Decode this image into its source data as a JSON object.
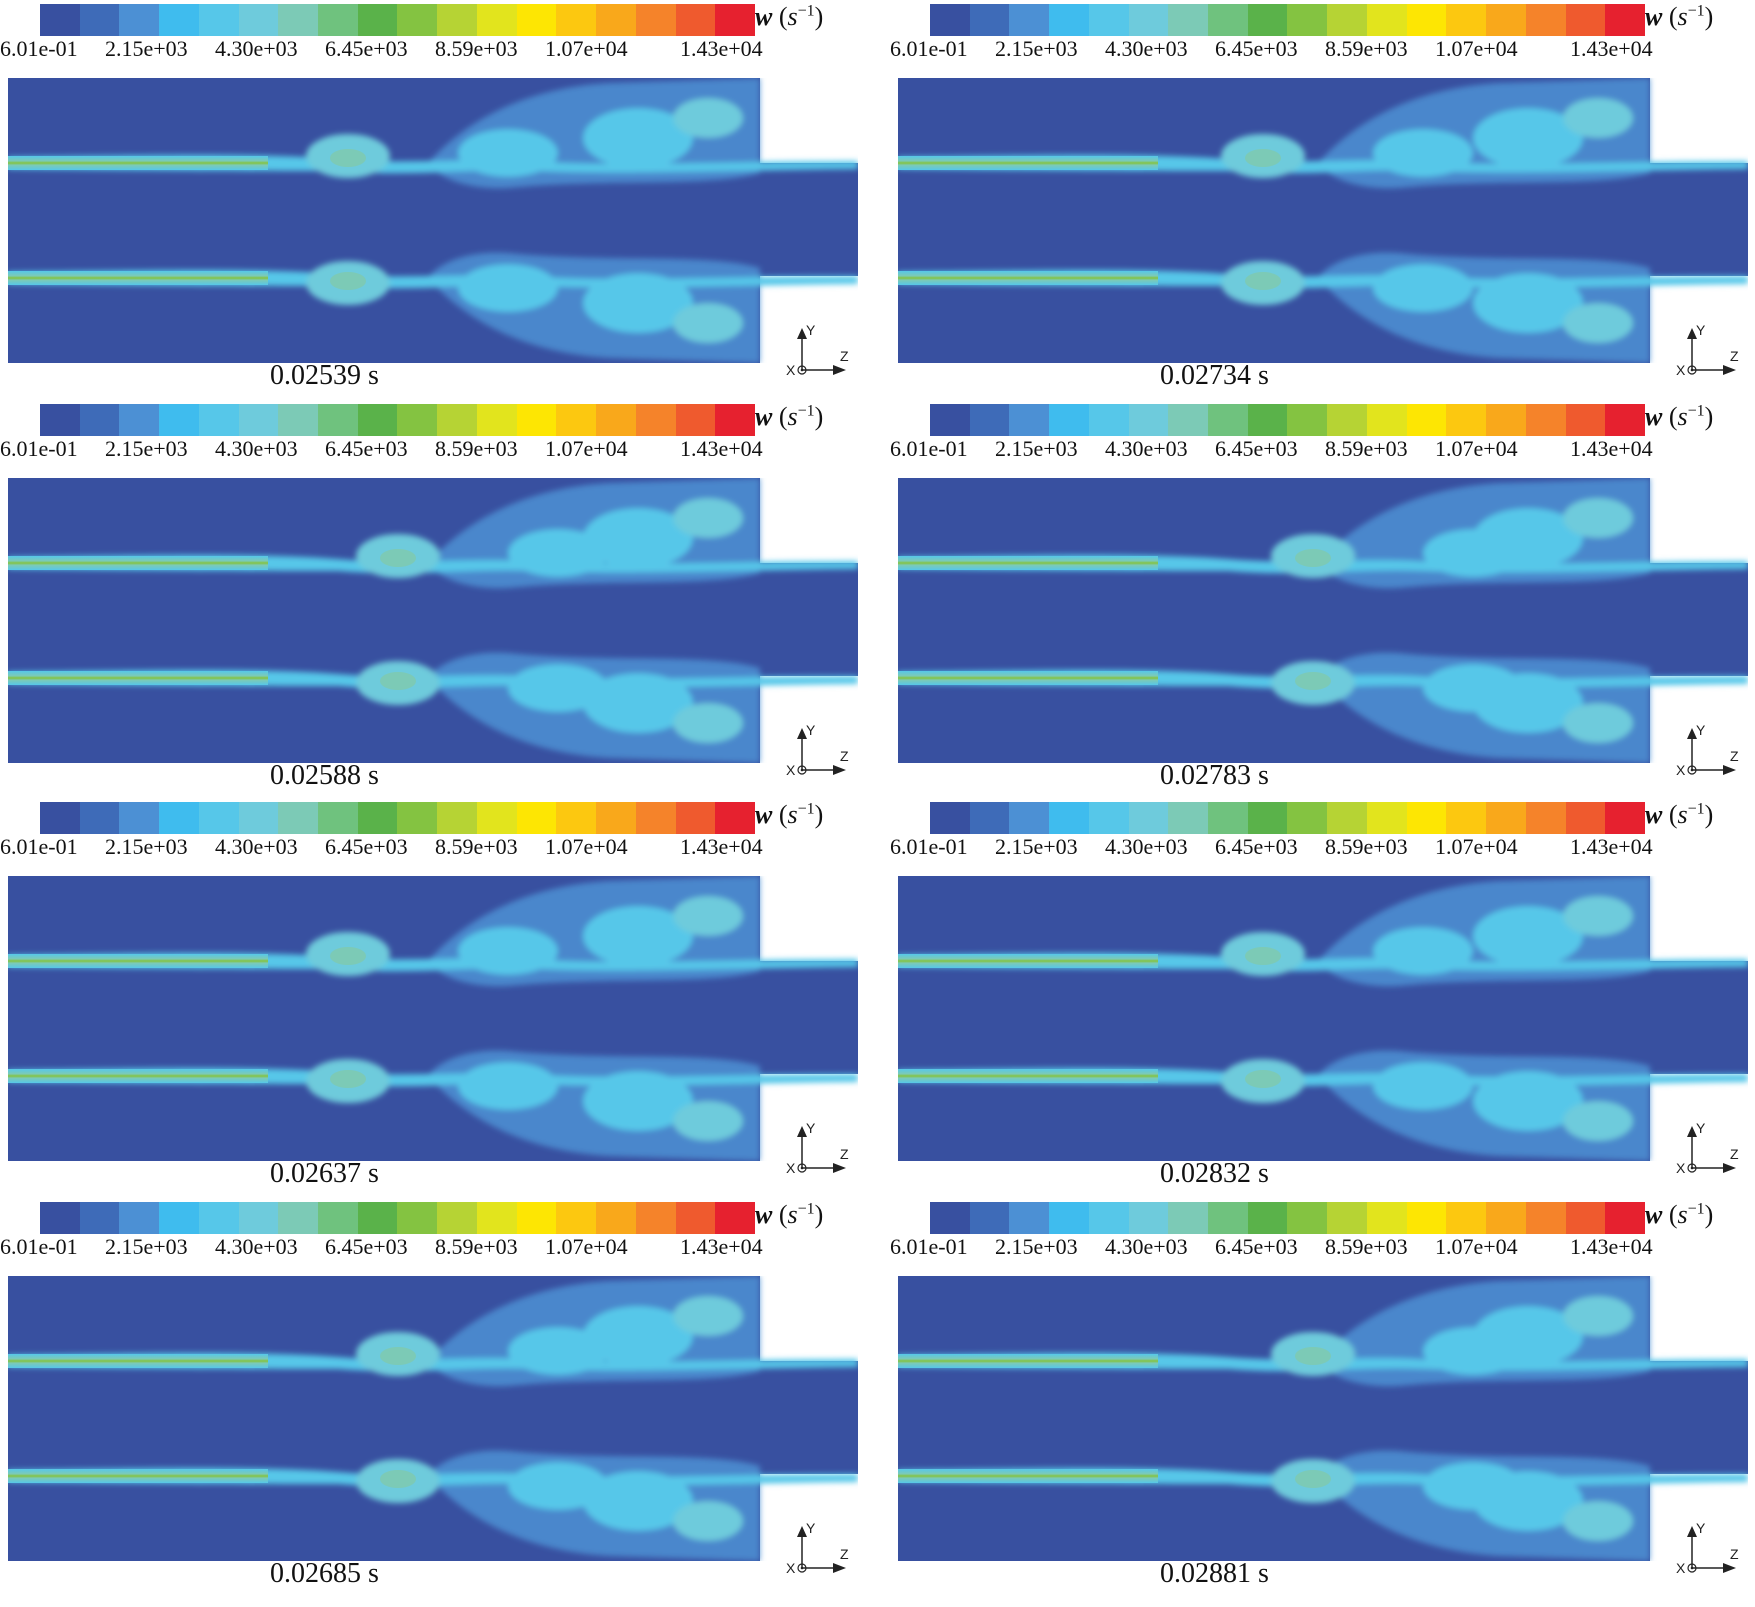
{
  "colorbar": {
    "variable": "w",
    "unit_base": "s",
    "unit_exp": "−1",
    "colors": [
      "#3850a0",
      "#3e6bb8",
      "#4c90d4",
      "#3fbcee",
      "#56c7e9",
      "#6ecbdc",
      "#7ccab6",
      "#6fc27e",
      "#5ab24a",
      "#84c341",
      "#b6d334",
      "#e2e41d",
      "#fde603",
      "#fcc810",
      "#f9a81b",
      "#f5832a",
      "#ef5a2e",
      "#e6212f"
    ],
    "tick_labels": [
      "6.01e-01",
      "2.15e+03",
      "4.30e+03",
      "6.45e+03",
      "8.59e+03",
      "1.07e+04",
      "1.43e+04"
    ]
  },
  "axis_labels": {
    "x": "X",
    "y": "Y",
    "z": "Z"
  },
  "panels": [
    {
      "time": "0.02539 s"
    },
    {
      "time": "0.02734 s"
    },
    {
      "time": "0.02588 s"
    },
    {
      "time": "0.02783 s"
    },
    {
      "time": "0.02637 s"
    },
    {
      "time": "0.02832 s"
    },
    {
      "time": "0.02685 s"
    },
    {
      "time": "0.02881 s"
    }
  ]
}
